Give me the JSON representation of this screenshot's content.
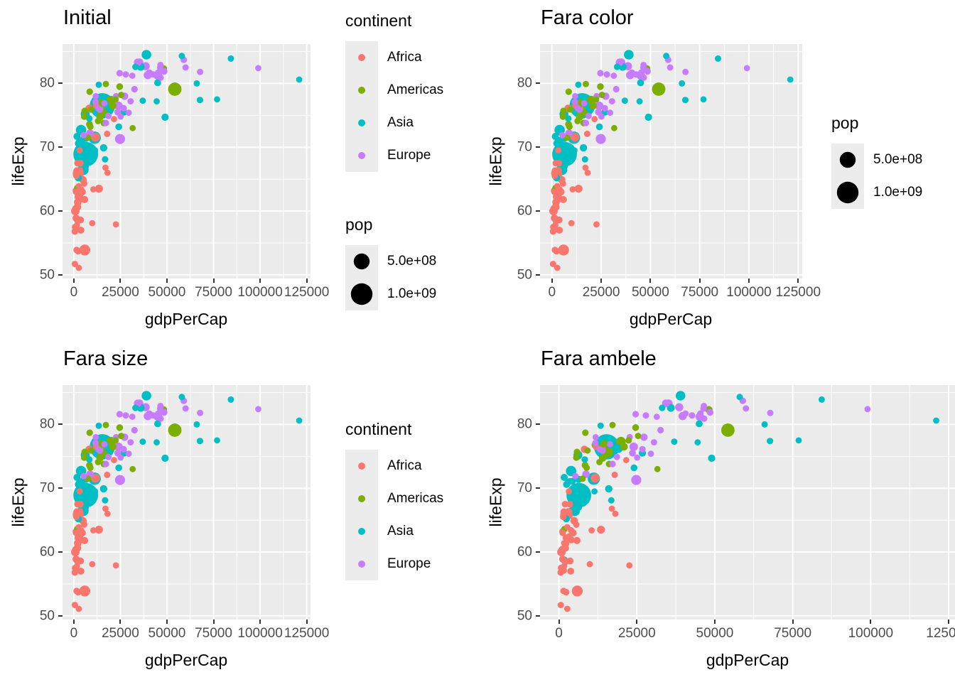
{
  "panels": [
    {
      "title": "Initial",
      "legends": [
        "continent",
        "pop"
      ]
    },
    {
      "title": "Fara color",
      "legends": [
        "pop"
      ]
    },
    {
      "title": "Fara size",
      "legends": [
        "continent"
      ]
    },
    {
      "title": "Fara ambele",
      "legends": []
    }
  ],
  "axes": {
    "x_label": "gdpPerCap",
    "y_label": "lifeExp",
    "x_ticks": [
      "0",
      "25000",
      "50000",
      "75000",
      "100000",
      "125000"
    ],
    "x_tick_values": [
      0,
      25000,
      50000,
      75000,
      100000,
      125000
    ],
    "y_ticks": [
      "50",
      "60",
      "70",
      "80"
    ],
    "y_tick_values": [
      50,
      60,
      70,
      80
    ]
  },
  "legend_continent": {
    "title": "continent",
    "entries": [
      {
        "label": "Africa",
        "color": "#F8766D"
      },
      {
        "label": "Americas",
        "color": "#7CAE00"
      },
      {
        "label": "Asia",
        "color": "#00BFC4"
      },
      {
        "label": "Europe",
        "color": "#C77CFF"
      }
    ]
  },
  "legend_pop": {
    "title": "pop",
    "entries": [
      {
        "label": "5.0e+08",
        "value": 500000000
      },
      {
        "label": "1.0e+09",
        "value": 1000000000
      }
    ]
  },
  "style": {
    "panel_bg": "#EBEBEB",
    "grid_color": "#FFFFFF",
    "legend_key_bg": "#ECECEC",
    "tick_text_color": "#4D4D4D",
    "text_color": "#000000",
    "pop_key_color": "#000000"
  },
  "chart_data": {
    "type": "scatter",
    "title_per_panel": [
      "Initial",
      "Fara color",
      "Fara size",
      "Fara ambele"
    ],
    "xlabel": "gdpPerCap",
    "ylabel": "lifeExp",
    "x_range": [
      0,
      125000
    ],
    "y_range": [
      50,
      85
    ],
    "grid": true,
    "legend_position": "right",
    "size_variable": "pop",
    "size_legend_values": [
      500000000,
      1000000000
    ],
    "continents": [
      "Africa",
      "Americas",
      "Asia",
      "Europe"
    ],
    "palette": {
      "Africa": "#F8766D",
      "Americas": "#7CAE00",
      "Asia": "#00BFC4",
      "Europe": "#C77CFF"
    },
    "point_format": [
      "continent_index",
      "gdpPerCap",
      "lifeExp",
      "pop"
    ],
    "points": [
      [
        0,
        13900,
        76.1,
        41300000
      ],
      [
        0,
        5800,
        61.8,
        29800000
      ],
      [
        0,
        2200,
        61.2,
        11200000
      ],
      [
        0,
        17000,
        66.8,
        2300000
      ],
      [
        0,
        1900,
        60.8,
        19200000
      ],
      [
        0,
        700,
        57.5,
        10900000
      ],
      [
        0,
        3600,
        58.6,
        24100000
      ],
      [
        0,
        600,
        51.7,
        4700000
      ],
      [
        0,
        2300,
        53.7,
        14900000
      ],
      [
        0,
        2700,
        63.9,
        800000
      ],
      [
        0,
        800,
        60.0,
        81300000
      ],
      [
        0,
        5600,
        64.3,
        5300000
      ],
      [
        0,
        3800,
        57.0,
        24300000
      ],
      [
        0,
        3400,
        62.5,
        1000000
      ],
      [
        0,
        11600,
        71.6,
        97600000
      ],
      [
        0,
        22600,
        57.9,
        1300000
      ],
      [
        0,
        1400,
        65.5,
        5000000
      ],
      [
        0,
        1900,
        65.9,
        105000000
      ],
      [
        0,
        18100,
        66.0,
        2000000
      ],
      [
        0,
        1700,
        61.4,
        2100000
      ],
      [
        0,
        4600,
        63.0,
        28800000
      ],
      [
        0,
        2200,
        60.6,
        12700000
      ],
      [
        0,
        1700,
        57.8,
        1900000
      ],
      [
        0,
        3100,
        66.3,
        49700000
      ],
      [
        0,
        2700,
        51.1,
        2200000
      ],
      [
        0,
        1200,
        63.0,
        4700000
      ],
      [
        0,
        17900,
        72.1,
        6400000
      ],
      [
        0,
        1600,
        66.3,
        25600000
      ],
      [
        0,
        1200,
        63.2,
        18600000
      ],
      [
        0,
        2200,
        58.5,
        18500000
      ],
      [
        0,
        3900,
        63.4,
        4400000
      ],
      [
        0,
        21600,
        74.4,
        1300000
      ],
      [
        0,
        8200,
        76.1,
        35700000
      ],
      [
        0,
        1200,
        58.9,
        29700000
      ],
      [
        0,
        10500,
        63.4,
        2500000
      ],
      [
        0,
        1000,
        60.4,
        21500000
      ],
      [
        0,
        5900,
        53.9,
        190900000
      ],
      [
        0,
        2000,
        67.5,
        12200000
      ],
      [
        0,
        3200,
        69.5,
        200000
      ],
      [
        0,
        3500,
        67.5,
        15900000
      ],
      [
        0,
        1500,
        53.9,
        7600000
      ],
      [
        0,
        600,
        56.8,
        14700000
      ],
      [
        0,
        13500,
        63.5,
        56700000
      ],
      [
        0,
        1500,
        57.1,
        12600000
      ],
      [
        0,
        4900,
        64.9,
        40500000
      ],
      [
        0,
        9900,
        58.1,
        1400000
      ],
      [
        0,
        3200,
        65.8,
        57300000
      ],
      [
        0,
        1700,
        60.6,
        7800000
      ],
      [
        0,
        11900,
        76.5,
        11500000
      ],
      [
        0,
        2400,
        62.2,
        42900000
      ],
      [
        0,
        4000,
        61.9,
        17100000
      ],
      [
        0,
        2300,
        61.4,
        16500000
      ],
      [
        1,
        20900,
        76.5,
        44300000
      ],
      [
        1,
        7600,
        71.5,
        11100000
      ],
      [
        1,
        15600,
        75.7,
        209300000
      ],
      [
        1,
        48100,
        82.3,
        36600000
      ],
      [
        1,
        24600,
        79.5,
        18100000
      ],
      [
        1,
        14500,
        76.9,
        49100000
      ],
      [
        1,
        17200,
        79.9,
        4900000
      ],
      [
        1,
        8500,
        78.7,
        11500000
      ],
      [
        1,
        16100,
        73.8,
        10800000
      ],
      [
        1,
        11600,
        76.8,
        16600000
      ],
      [
        1,
        8900,
        73.2,
        6400000
      ],
      [
        1,
        8400,
        73.6,
        16900000
      ],
      [
        1,
        1800,
        63.6,
        11000000
      ],
      [
        1,
        5600,
        74.8,
        9300000
      ],
      [
        1,
        9200,
        75.9,
        2900000
      ],
      [
        1,
        19900,
        77.3,
        129200000
      ],
      [
        1,
        5800,
        75.7,
        6200000
      ],
      [
        1,
        25400,
        78.2,
        4100000
      ],
      [
        1,
        13000,
        74.1,
        6800000
      ],
      [
        1,
        13400,
        76.3,
        32200000
      ],
      [
        1,
        31600,
        73.0,
        1400000
      ],
      [
        1,
        54200,
        79.1,
        325100000
      ],
      [
        1,
        22400,
        77.5,
        3500000
      ],
      [
        1,
        14000,
        74.7,
        31000000
      ],
      [
        2,
        1800,
        58.7,
        35500000
      ],
      [
        2,
        44500,
        77.2,
        1500000
      ],
      [
        2,
        3900,
        72.7,
        164700000
      ],
      [
        2,
        76900,
        77.5,
        400000
      ],
      [
        2,
        3700,
        69.3,
        16000000
      ],
      [
        2,
        15300,
        76.5,
        1409500000
      ],
      [
        2,
        58000,
        84.3,
        7400000
      ],
      [
        2,
        6400,
        68.9,
        1339200000
      ],
      [
        2,
        11200,
        71.5,
        264000000
      ],
      [
        2,
        19100,
        76.2,
        81200000
      ],
      [
        2,
        16000,
        69.9,
        38300000
      ],
      [
        2,
        33100,
        82.6,
        8300000
      ],
      [
        2,
        39000,
        84.5,
        127500000
      ],
      [
        2,
        8300,
        74.5,
        9700000
      ],
      [
        2,
        24100,
        73.2,
        18200000
      ],
      [
        2,
        66000,
        80.0,
        4100000
      ],
      [
        2,
        3400,
        71.1,
        6000000
      ],
      [
        2,
        6400,
        67.0,
        6900000
      ],
      [
        2,
        13400,
        79.8,
        6100000
      ],
      [
        2,
        26800,
        75.5,
        31600000
      ],
      [
        2,
        11400,
        69.5,
        3100000
      ],
      [
        2,
        5600,
        66.7,
        53400000
      ],
      [
        2,
        2500,
        70.6,
        29300000
      ],
      [
        2,
        1700,
        71.7,
        25500000
      ],
      [
        2,
        37000,
        77.3,
        4600000
      ],
      [
        2,
        5000,
        66.5,
        197000000
      ],
      [
        2,
        7600,
        69.2,
        104900000
      ],
      [
        2,
        121000,
        80.6,
        2600000
      ],
      [
        2,
        49000,
        74.7,
        32900000
      ],
      [
        2,
        84300,
        83.9,
        5700000
      ],
      [
        2,
        35900,
        82.6,
        51000000
      ],
      [
        2,
        11700,
        76.7,
        20900000
      ],
      [
        2,
        4300,
        71.1,
        18300000
      ],
      [
        2,
        45000,
        80.1,
        23600000
      ],
      [
        2,
        2900,
        70.9,
        8900000
      ],
      [
        2,
        16300,
        76.9,
        69000000
      ],
      [
        2,
        16800,
        68.1,
        5800000
      ],
      [
        2,
        67700,
        77.4,
        9400000
      ],
      [
        2,
        6300,
        71.4,
        32400000
      ],
      [
        2,
        6100,
        75.2,
        95500000
      ],
      [
        2,
        2400,
        65.2,
        28300000
      ],
      [
        3,
        11800,
        78.0,
        2900000
      ],
      [
        3,
        45400,
        81.7,
        8700000
      ],
      [
        3,
        17200,
        73.8,
        9500000
      ],
      [
        3,
        42700,
        81.4,
        11400000
      ],
      [
        3,
        11700,
        77.1,
        3500000
      ],
      [
        3,
        18600,
        74.9,
        7100000
      ],
      [
        3,
        22700,
        78.0,
        4200000
      ],
      [
        3,
        32600,
        79.1,
        10600000
      ],
      [
        3,
        46600,
        80.9,
        5700000
      ],
      [
        3,
        40600,
        81.7,
        5500000
      ],
      [
        3,
        38600,
        82.7,
        65000000
      ],
      [
        3,
        45200,
        81.2,
        82100000
      ],
      [
        3,
        24600,
        81.6,
        11200000
      ],
      [
        3,
        26800,
        76.1,
        9700000
      ],
      [
        3,
        46500,
        82.9,
        300000
      ],
      [
        3,
        67800,
        81.8,
        4800000
      ],
      [
        3,
        35200,
        83.3,
        59400000
      ],
      [
        3,
        25100,
        74.8,
        1900000
      ],
      [
        3,
        29500,
        75.4,
        2800000
      ],
      [
        3,
        99000,
        82.4,
        600000
      ],
      [
        3,
        13100,
        76.1,
        2100000
      ],
      [
        3,
        5300,
        71.9,
        4100000
      ],
      [
        3,
        16400,
        76.9,
        600000
      ],
      [
        3,
        48500,
        81.9,
        17000000
      ],
      [
        3,
        60000,
        82.5,
        5300000
      ],
      [
        3,
        27300,
        78.0,
        38200000
      ],
      [
        3,
        27900,
        81.4,
        10300000
      ],
      [
        3,
        23600,
        75.5,
        19700000
      ],
      [
        3,
        24800,
        71.3,
        144500000
      ],
      [
        3,
        14000,
        75.9,
        8800000
      ],
      [
        3,
        30500,
        77.2,
        5400000
      ],
      [
        3,
        31400,
        81.2,
        2100000
      ],
      [
        3,
        34300,
        83.3,
        46400000
      ],
      [
        3,
        46400,
        82.5,
        9900000
      ],
      [
        3,
        59000,
        83.7,
        8500000
      ],
      [
        3,
        24000,
        76.5,
        80700000
      ],
      [
        3,
        8700,
        72.2,
        44200000
      ],
      [
        3,
        39700,
        81.3,
        66000000
      ]
    ]
  }
}
